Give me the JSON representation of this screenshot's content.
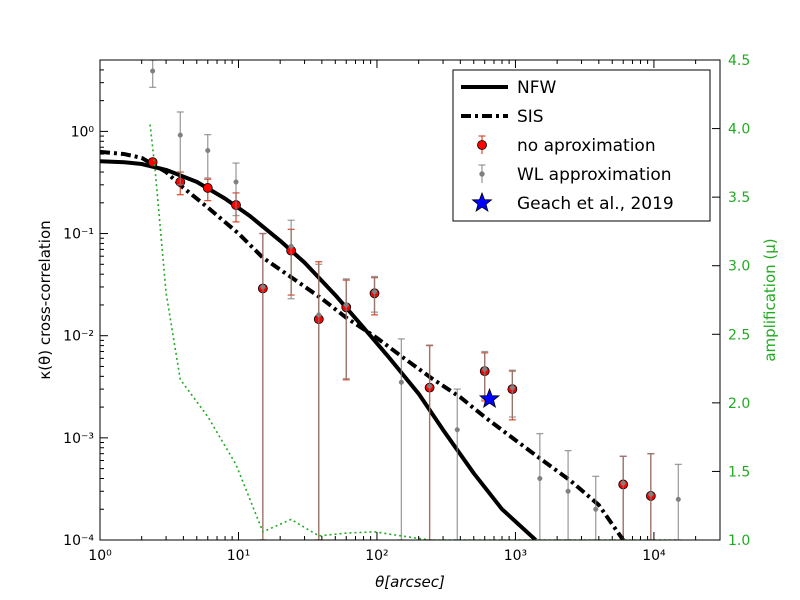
{
  "chart_data": {
    "type": "scatter",
    "xlabel": "θ[arcsec]",
    "ylabel": "κ(θ) cross-correlation",
    "y2label": "amplification (μ)",
    "xscale": "log",
    "yscale": "log",
    "xlim": [
      1,
      30000
    ],
    "ylim": [
      0.0001,
      5
    ],
    "y2lim": [
      1.0,
      4.5
    ],
    "x_ticks": [
      {
        "value": 1,
        "label": "10⁰"
      },
      {
        "value": 10,
        "label": "10¹"
      },
      {
        "value": 100,
        "label": "10²"
      },
      {
        "value": 1000,
        "label": "10³"
      },
      {
        "value": 10000,
        "label": "10⁴"
      }
    ],
    "y_ticks": [
      {
        "value": 0.0001,
        "label": "10⁻⁴"
      },
      {
        "value": 0.001,
        "label": "10⁻³"
      },
      {
        "value": 0.01,
        "label": "10⁻²"
      },
      {
        "value": 0.1,
        "label": "10⁻¹"
      },
      {
        "value": 1,
        "label": "10⁰"
      }
    ],
    "y2_ticks": [
      "1.0",
      "1.5",
      "2.0",
      "2.5",
      "3.0",
      "3.5",
      "4.0",
      "4.5"
    ],
    "legend_position": "upper-right",
    "series": [
      {
        "name": "NFW",
        "kind": "line",
        "style": "solid",
        "color": "#000000",
        "x": [
          1,
          1.5,
          2,
          3,
          5,
          8,
          12,
          20,
          30,
          50,
          80,
          120,
          200,
          300,
          500,
          800,
          1400
        ],
        "y": [
          0.51,
          0.5,
          0.48,
          0.42,
          0.32,
          0.22,
          0.15,
          0.085,
          0.052,
          0.025,
          0.012,
          0.0063,
          0.0027,
          0.0012,
          0.00045,
          0.0002,
          0.0001
        ]
      },
      {
        "name": "SIS",
        "kind": "line",
        "style": "dashdot",
        "color": "#000000",
        "x": [
          1,
          1.5,
          2,
          3,
          4,
          6,
          10,
          15,
          25,
          40,
          60,
          100,
          150,
          250,
          400,
          600,
          1000,
          1500,
          2500,
          4000,
          6000
        ],
        "y": [
          0.63,
          0.6,
          0.55,
          0.4,
          0.28,
          0.18,
          0.1,
          0.058,
          0.036,
          0.023,
          0.015,
          0.0095,
          0.0063,
          0.0038,
          0.0025,
          0.0016,
          0.00095,
          0.00063,
          0.00038,
          0.00022,
          0.0001
        ]
      },
      {
        "name": "no aproximation",
        "kind": "errorbar",
        "color": "#ff0000",
        "errcolor": "#cc2200",
        "points": [
          {
            "x": 2.4,
            "y": 0.5,
            "lo": 0.47,
            "hi": 0.53
          },
          {
            "x": 3.8,
            "y": 0.32,
            "lo": 0.24,
            "hi": 0.4
          },
          {
            "x": 6.0,
            "y": 0.28,
            "lo": 0.21,
            "hi": 0.34
          },
          {
            "x": 9.6,
            "y": 0.19,
            "lo": 0.13,
            "hi": 0.25
          },
          {
            "x": 15,
            "y": 0.029,
            "lo": 0.0001,
            "hi": 0.1
          },
          {
            "x": 24,
            "y": 0.068,
            "lo": 0.025,
            "hi": 0.11
          },
          {
            "x": 38,
            "y": 0.0145,
            "lo": 0.0001,
            "hi": 0.053
          },
          {
            "x": 60,
            "y": 0.019,
            "lo": 0.0037,
            "hi": 0.035
          },
          {
            "x": 96,
            "y": 0.026,
            "lo": 0.016,
            "hi": 0.037
          },
          {
            "x": 240,
            "y": 0.0031,
            "lo": 0.0001,
            "hi": 0.008
          },
          {
            "x": 600,
            "y": 0.0045,
            "lo": 0.0023,
            "hi": 0.0068
          },
          {
            "x": 950,
            "y": 0.003,
            "lo": 0.0015,
            "hi": 0.0045
          },
          {
            "x": 6000,
            "y": 0.00035,
            "lo": 0.0001,
            "hi": 0.00066
          },
          {
            "x": 9500,
            "y": 0.00027,
            "lo": 0.0001,
            "hi": 0.0007
          }
        ]
      },
      {
        "name": "WL approximation",
        "kind": "errorbar",
        "color": "#808080",
        "errcolor": "#808080",
        "points": [
          {
            "x": 2.4,
            "y": 3.9,
            "lo": 2.7,
            "hi": 5.0
          },
          {
            "x": 3.8,
            "y": 0.92,
            "lo": 0.3,
            "hi": 1.55
          },
          {
            "x": 6.0,
            "y": 0.65,
            "lo": 0.35,
            "hi": 0.93
          },
          {
            "x": 9.6,
            "y": 0.32,
            "lo": 0.15,
            "hi": 0.49
          },
          {
            "x": 15,
            "y": 0.03,
            "lo": 0.0001,
            "hi": 0.1
          },
          {
            "x": 24,
            "y": 0.075,
            "lo": 0.023,
            "hi": 0.135
          },
          {
            "x": 38,
            "y": 0.016,
            "lo": 0.0001,
            "hi": 0.05
          },
          {
            "x": 60,
            "y": 0.02,
            "lo": 0.0038,
            "hi": 0.036
          },
          {
            "x": 96,
            "y": 0.027,
            "lo": 0.017,
            "hi": 0.038
          },
          {
            "x": 150,
            "y": 0.0035,
            "lo": 0.0001,
            "hi": 0.0093
          },
          {
            "x": 240,
            "y": 0.0032,
            "lo": 0.0001,
            "hi": 0.0081
          },
          {
            "x": 380,
            "y": 0.0012,
            "lo": 0.0001,
            "hi": 0.003
          },
          {
            "x": 600,
            "y": 0.0047,
            "lo": 0.0024,
            "hi": 0.007
          },
          {
            "x": 950,
            "y": 0.0031,
            "lo": 0.0016,
            "hi": 0.0046
          },
          {
            "x": 1500,
            "y": 0.0004,
            "lo": 0.0001,
            "hi": 0.0011
          },
          {
            "x": 2400,
            "y": 0.0003,
            "lo": 0.0001,
            "hi": 0.00075
          },
          {
            "x": 3800,
            "y": 0.0002,
            "lo": 0.0001,
            "hi": 0.00042
          },
          {
            "x": 6000,
            "y": 0.00036,
            "lo": 0.0001,
            "hi": 0.00066
          },
          {
            "x": 9500,
            "y": 0.00028,
            "lo": 0.0001,
            "hi": 0.0007
          },
          {
            "x": 15000,
            "y": 0.00025,
            "lo": 0.0001,
            "hi": 0.00055
          }
        ]
      },
      {
        "name": "Geach et al., 2019",
        "kind": "star",
        "color": "#0000ff",
        "points": [
          {
            "x": 650,
            "y": 0.0024
          }
        ]
      },
      {
        "name": "amplification",
        "kind": "line",
        "style": "dotted",
        "color": "#22aa22",
        "axis": "y2",
        "in_legend": false,
        "x": [
          2.3,
          2.5,
          3,
          3.8,
          6,
          9.6,
          15,
          24,
          38,
          60,
          96,
          150,
          240,
          600,
          1500,
          6000,
          15000
        ],
        "y": [
          4.03,
          3.7,
          2.8,
          2.17,
          1.9,
          1.55,
          1.06,
          1.15,
          1.03,
          1.05,
          1.06,
          1.03,
          1.0,
          1.0,
          1.0,
          1.0,
          1.0
        ]
      }
    ]
  }
}
